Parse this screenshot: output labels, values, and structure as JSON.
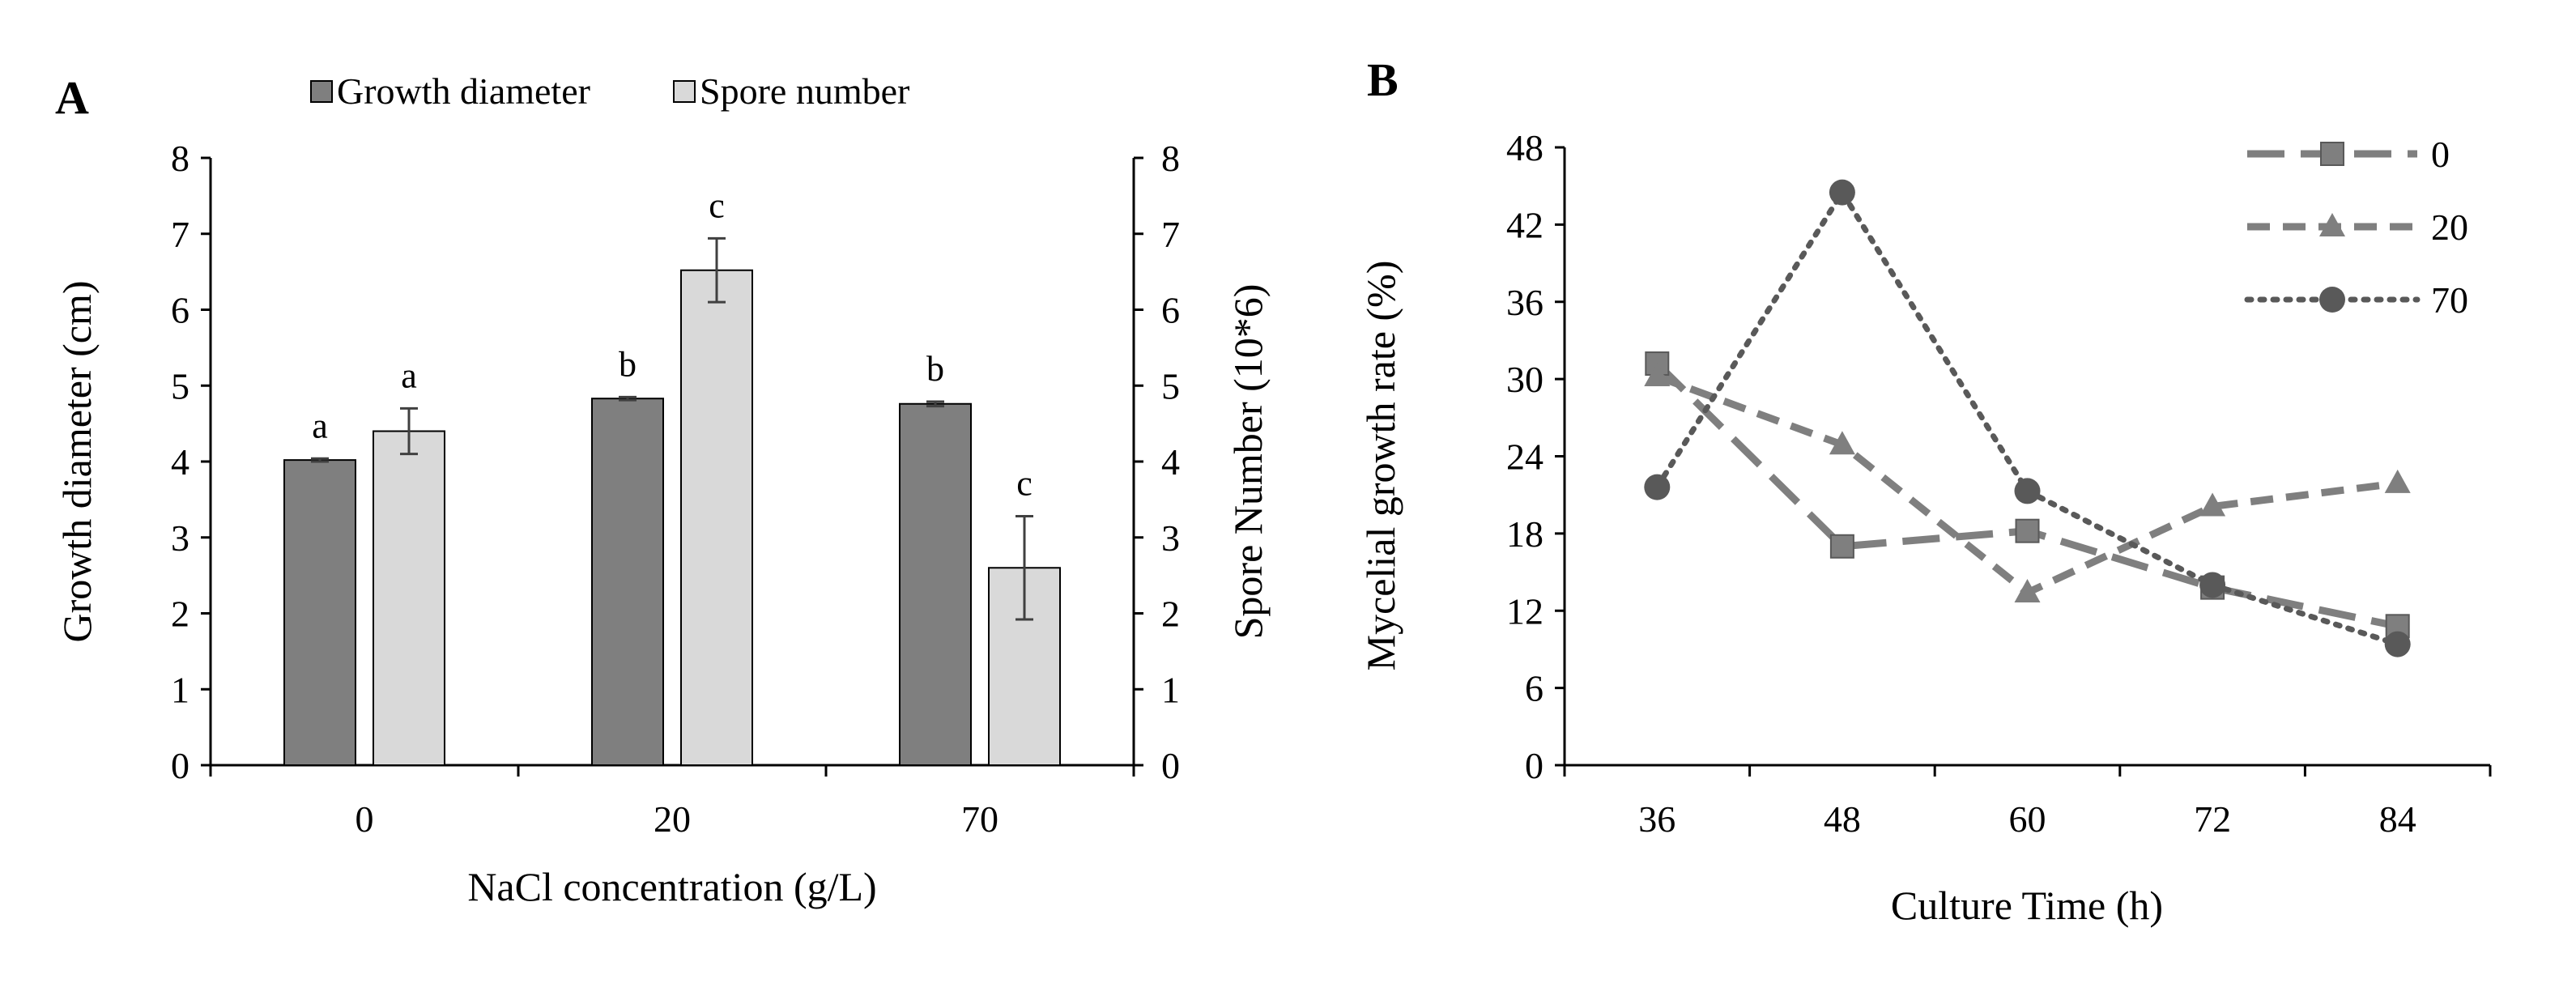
{
  "chart_data": [
    {
      "panel": "A",
      "type": "bar",
      "categories": [
        "0",
        "20",
        "70"
      ],
      "xlabel": "NaCl concentration (g/L)",
      "ylabel": "Growth diameter (cm)",
      "y2label": "Spore Number (10*6)",
      "ylim": [
        0,
        8
      ],
      "y2lim": [
        0,
        8
      ],
      "yticks": [
        "0",
        "1",
        "2",
        "3",
        "4",
        "5",
        "6",
        "7",
        "8"
      ],
      "y2ticks": [
        "0",
        "1",
        "2",
        "3",
        "4",
        "5",
        "6",
        "7",
        "8"
      ],
      "legend_position": "top",
      "series": [
        {
          "name": "Growth diameter",
          "axis": "left",
          "color": "#7f7f7f",
          "values": [
            4.02,
            4.83,
            4.76
          ],
          "errors": [
            0.02,
            0.02,
            0.03
          ],
          "labels": [
            "a",
            "b",
            "b"
          ]
        },
        {
          "name": "Spore number",
          "axis": "right",
          "color": "#d9d9d9",
          "values": [
            4.4,
            6.52,
            2.6
          ],
          "errors": [
            0.3,
            0.42,
            0.68
          ],
          "labels": [
            "a",
            "c",
            "c"
          ]
        }
      ]
    },
    {
      "panel": "B",
      "type": "line",
      "x": [
        "36",
        "48",
        "60",
        "72",
        "84"
      ],
      "xlabel": "Culture  Time (h)",
      "ylabel": "Mycelial growth rate (%)",
      "ylim": [
        0,
        48
      ],
      "yticks": [
        "0",
        "6",
        "12",
        "18",
        "24",
        "30",
        "36",
        "42",
        "48"
      ],
      "legend_position": "top-right",
      "series": [
        {
          "name": "0",
          "style": "long-dash",
          "marker": "square",
          "color": "#7f7f7f",
          "values": [
            31.2,
            17.0,
            18.2,
            13.8,
            10.8
          ]
        },
        {
          "name": "20",
          "style": "dash",
          "marker": "triangle",
          "color": "#7f7f7f",
          "values": [
            30.2,
            24.9,
            13.4,
            20.1,
            21.9
          ]
        },
        {
          "name": "70",
          "style": "dot",
          "marker": "circle",
          "color": "#595959",
          "values": [
            21.6,
            44.5,
            21.3,
            14.0,
            9.4
          ]
        }
      ]
    }
  ]
}
